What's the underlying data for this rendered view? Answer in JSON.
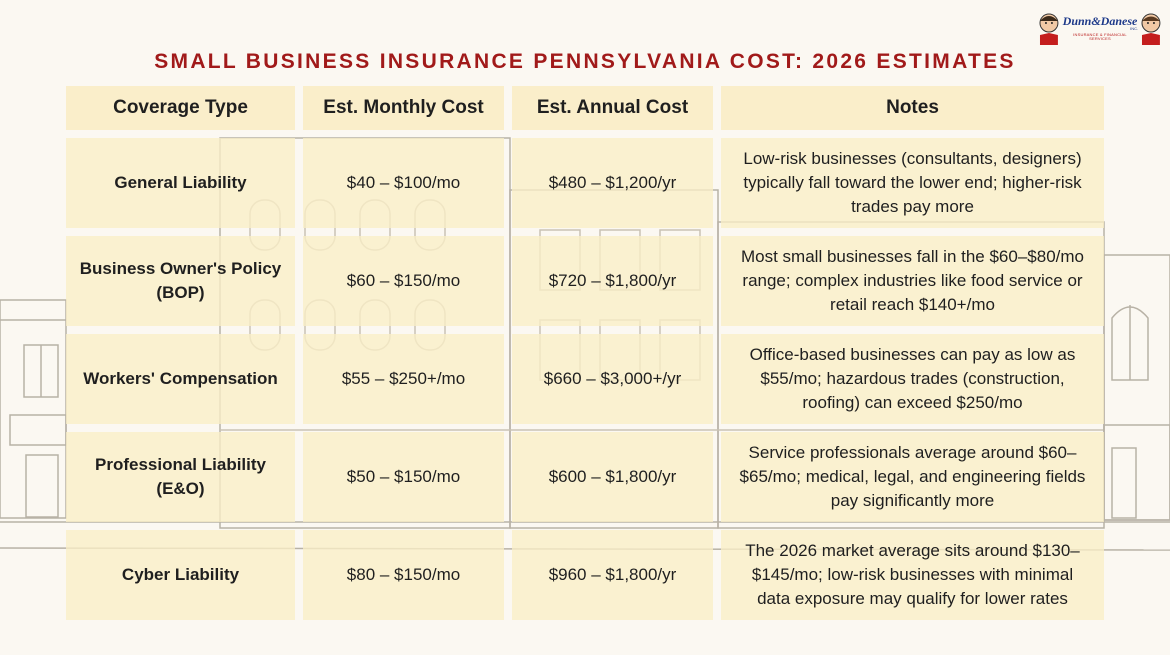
{
  "logo": {
    "name": "Dunn&Danese",
    "inc": "INC.",
    "tagline": "INSURANCE & FINANCIAL SERVICES"
  },
  "title": "SMALL BUSINESS INSURANCE PENNSYLVANIA COST: 2026 ESTIMATES",
  "table": {
    "headers": [
      "Coverage Type",
      "Est. Monthly Cost",
      "Est. Annual Cost",
      "Notes"
    ],
    "rows": [
      {
        "type": "General Liability",
        "monthly": "$40 – $100/mo",
        "annual": "$480 – $1,200/yr",
        "notes": "Low-risk businesses (consultants, designers) typically fall toward the lower end; higher-risk trades pay more"
      },
      {
        "type": "Business Owner's Policy (BOP)",
        "monthly": "$60 – $150/mo",
        "annual": "$720 – $1,800/yr",
        "notes": "Most small businesses fall in the $60–$80/mo range; complex industries like food service or retail reach $140+/mo"
      },
      {
        "type": "Workers' Compensation",
        "monthly": "$55 – $250+/mo",
        "annual": "$660 – $3,000+/yr",
        "notes": "Office-based businesses can pay as low as $55/mo; hazardous trades (construction, roofing) can exceed $250/mo"
      },
      {
        "type": "Professional Liability (E&O)",
        "monthly": "$50 – $150/mo",
        "annual": "$600 – $1,800/yr",
        "notes": "Service professionals average around $60–$65/mo; medical, legal, and engineering fields pay significantly more"
      },
      {
        "type": "Cyber Liability",
        "monthly": "$80 – $150/mo",
        "annual": "$960 – $1,800/yr",
        "notes": "The 2026 market average sits around $130–$145/mo; low-risk businesses with minimal data exposure may qualify for lower rates"
      }
    ]
  }
}
